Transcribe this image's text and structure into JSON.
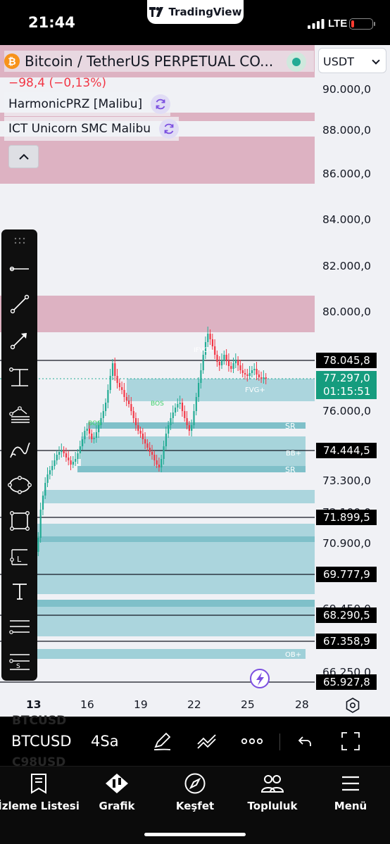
{
  "status_bar": {
    "time": "21:44",
    "brand": "TradingView",
    "network": "LTE"
  },
  "header": {
    "symbol_icon": "bitcoin-icon",
    "symbol_title": "Bitcoin / TetherUS PERPETUAL CO...",
    "currency": "USDT",
    "change": "−98,4 (−0,13%)",
    "indicators": [
      {
        "label": "HarmonicPRZ [Malibu]"
      },
      {
        "label": "ICT Unicorn SMC Malibu"
      }
    ]
  },
  "price_axis": {
    "labels": [
      "90.000,0",
      "88.000,0",
      "86.000,0",
      "84.000,0",
      "82.000,0",
      "80.000,0",
      "76.000,0",
      "73.300,0",
      "72.100,0",
      "70.900,0",
      "69.450,0",
      "66.250,0"
    ],
    "level_tags": [
      "78.045,8",
      "74.444,5",
      "71.899,5",
      "69.777,9",
      "68.290,5",
      "67.358,9",
      "65.927,8"
    ],
    "current_price": "77.297,0",
    "countdown": "01:15:51"
  },
  "chart_annotations": {
    "sr_1": "SR",
    "bb": "BB+",
    "sr_2": "SR",
    "ob": "OB+",
    "fvg": "FVG+",
    "bos_1": "BOS",
    "bos_2": "BOS",
    "ifvg": "IFVG+"
  },
  "time_axis": {
    "labels": [
      "13",
      "16",
      "19",
      "22",
      "25",
      "28"
    ]
  },
  "drawing_tools": [
    "drag-handle-icon",
    "horizontal-line-icon",
    "trend-line-icon",
    "arrow-line-icon",
    "long-position-icon",
    "pitchfork-icon",
    "brush-icon",
    "ellipse-icon",
    "rectangle-icon",
    "fib-icon",
    "text-icon",
    "parallel-channel-icon",
    "scale-icon"
  ],
  "chart_toolbar": {
    "ticker": "BTCUSD",
    "ticker_prev": "BTCUSD",
    "ticker_next": "C98USD",
    "interval": "4Sa"
  },
  "tabs": [
    {
      "label": "İzleme Listesi",
      "icon": "watchlist-icon"
    },
    {
      "label": "Grafik",
      "icon": "chart-icon"
    },
    {
      "label": "Keşfet",
      "icon": "compass-icon"
    },
    {
      "label": "Topluluk",
      "icon": "community-icon"
    },
    {
      "label": "Menü",
      "icon": "menu-icon"
    }
  ],
  "colors": {
    "up": "#22ab94",
    "down": "#f23645",
    "zone_pink": "#d9a7b8",
    "zone_teal": "#9fd0d8",
    "tag_green": "#159c7e",
    "accent_purple": "#7b4fe0"
  }
}
